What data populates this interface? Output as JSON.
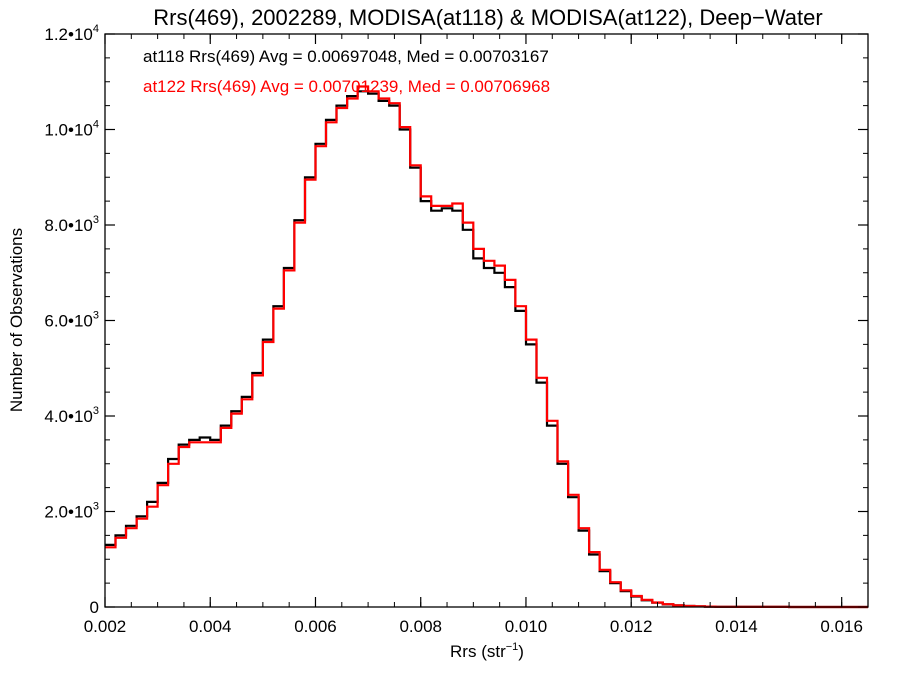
{
  "chart_data": {
    "type": "line",
    "title": "Rrs(469), 2002289, MODISA(at118) & MODISA(at122), Deep−Water",
    "xlabel": "Rrs (str",
    "xlabel_sup": "−1",
    "xlabel_end": ")",
    "ylabel": "Number of Observations",
    "xlim": [
      0.002,
      0.0165
    ],
    "ylim": [
      0,
      12000
    ],
    "grid": false,
    "x_ticks": [
      0.002,
      0.004,
      0.006,
      0.008,
      0.01,
      0.012,
      0.014,
      0.016
    ],
    "x_tick_labels": [
      "0.002",
      "0.004",
      "0.006",
      "0.008",
      "0.010",
      "0.012",
      "0.014",
      "0.016"
    ],
    "y_ticks": [
      {
        "value": 0,
        "base": "0",
        "sup": ""
      },
      {
        "value": 2000,
        "base": "2.0•10",
        "sup": "3"
      },
      {
        "value": 4000,
        "base": "4.0•10",
        "sup": "3"
      },
      {
        "value": 6000,
        "base": "6.0•10",
        "sup": "3"
      },
      {
        "value": 8000,
        "base": "8.0•10",
        "sup": "3"
      },
      {
        "value": 10000,
        "base": "1.0•10",
        "sup": "4"
      },
      {
        "value": 12000,
        "base": "1.2•10",
        "sup": "4"
      }
    ],
    "annotations": [
      {
        "text": "at118 Rrs(469) Avg = 0.00697048, Med = 0.00703167",
        "color": "#000000"
      },
      {
        "text": "at122 Rrs(469) Avg = 0.00701239, Med = 0.00706968",
        "color": "#ff0000"
      }
    ],
    "series": [
      {
        "color": "#000000",
        "points": [
          [
            0.002,
            1300
          ],
          [
            0.0022,
            1500
          ],
          [
            0.0024,
            1700
          ],
          [
            0.0026,
            1900
          ],
          [
            0.0028,
            2200
          ],
          [
            0.003,
            2600
          ],
          [
            0.0032,
            3100
          ],
          [
            0.0034,
            3400
          ],
          [
            0.0036,
            3500
          ],
          [
            0.0038,
            3550
          ],
          [
            0.004,
            3500
          ],
          [
            0.0042,
            3800
          ],
          [
            0.0044,
            4100
          ],
          [
            0.0046,
            4400
          ],
          [
            0.0048,
            4900
          ],
          [
            0.005,
            5600
          ],
          [
            0.0052,
            6300
          ],
          [
            0.0054,
            7100
          ],
          [
            0.0056,
            8100
          ],
          [
            0.0058,
            9000
          ],
          [
            0.006,
            9700
          ],
          [
            0.0062,
            10200
          ],
          [
            0.0064,
            10500
          ],
          [
            0.0066,
            10700
          ],
          [
            0.0068,
            10800
          ],
          [
            0.007,
            10750
          ],
          [
            0.0072,
            10600
          ],
          [
            0.0074,
            10500
          ],
          [
            0.0076,
            10000
          ],
          [
            0.0078,
            9200
          ],
          [
            0.008,
            8500
          ],
          [
            0.0082,
            8300
          ],
          [
            0.0084,
            8350
          ],
          [
            0.0086,
            8300
          ],
          [
            0.0088,
            7900
          ],
          [
            0.009,
            7300
          ],
          [
            0.0092,
            7100
          ],
          [
            0.0094,
            7000
          ],
          [
            0.0096,
            6700
          ],
          [
            0.0098,
            6200
          ],
          [
            0.01,
            5500
          ],
          [
            0.0102,
            4700
          ],
          [
            0.0104,
            3800
          ],
          [
            0.0106,
            3000
          ],
          [
            0.0108,
            2300
          ],
          [
            0.011,
            1600
          ],
          [
            0.0112,
            1100
          ],
          [
            0.0114,
            750
          ],
          [
            0.0116,
            500
          ],
          [
            0.0118,
            330
          ],
          [
            0.012,
            220
          ],
          [
            0.0122,
            140
          ],
          [
            0.0124,
            90
          ],
          [
            0.0126,
            55
          ],
          [
            0.0128,
            35
          ],
          [
            0.013,
            20
          ],
          [
            0.0132,
            12
          ],
          [
            0.0134,
            8
          ],
          [
            0.0136,
            5
          ],
          [
            0.014,
            3
          ],
          [
            0.0145,
            2
          ],
          [
            0.015,
            1
          ],
          [
            0.0155,
            1
          ],
          [
            0.016,
            0
          ],
          [
            0.0165,
            0
          ]
        ]
      },
      {
        "color": "#ff0000",
        "points": [
          [
            0.002,
            1250
          ],
          [
            0.0022,
            1450
          ],
          [
            0.0024,
            1650
          ],
          [
            0.0026,
            1850
          ],
          [
            0.0028,
            2100
          ],
          [
            0.003,
            2550
          ],
          [
            0.0032,
            3000
          ],
          [
            0.0034,
            3350
          ],
          [
            0.0036,
            3450
          ],
          [
            0.0038,
            3450
          ],
          [
            0.004,
            3450
          ],
          [
            0.0042,
            3750
          ],
          [
            0.0044,
            4050
          ],
          [
            0.0046,
            4350
          ],
          [
            0.0048,
            4850
          ],
          [
            0.005,
            5550
          ],
          [
            0.0052,
            6250
          ],
          [
            0.0054,
            7050
          ],
          [
            0.0056,
            8050
          ],
          [
            0.0058,
            8950
          ],
          [
            0.006,
            9650
          ],
          [
            0.0062,
            10150
          ],
          [
            0.0064,
            10450
          ],
          [
            0.0066,
            10650
          ],
          [
            0.0068,
            10900
          ],
          [
            0.007,
            10800
          ],
          [
            0.0072,
            10650
          ],
          [
            0.0074,
            10550
          ],
          [
            0.0076,
            10050
          ],
          [
            0.0078,
            9250
          ],
          [
            0.008,
            8600
          ],
          [
            0.0082,
            8400
          ],
          [
            0.0084,
            8400
          ],
          [
            0.0086,
            8450
          ],
          [
            0.0088,
            8050
          ],
          [
            0.009,
            7500
          ],
          [
            0.0092,
            7250
          ],
          [
            0.0094,
            7150
          ],
          [
            0.0096,
            6850
          ],
          [
            0.0098,
            6300
          ],
          [
            0.01,
            5600
          ],
          [
            0.0102,
            4800
          ],
          [
            0.0104,
            3900
          ],
          [
            0.0106,
            3050
          ],
          [
            0.0108,
            2350
          ],
          [
            0.011,
            1650
          ],
          [
            0.0112,
            1150
          ],
          [
            0.0114,
            780
          ],
          [
            0.0116,
            520
          ],
          [
            0.0118,
            350
          ],
          [
            0.012,
            230
          ],
          [
            0.0122,
            150
          ],
          [
            0.0124,
            95
          ],
          [
            0.0126,
            58
          ],
          [
            0.0128,
            36
          ],
          [
            0.013,
            21
          ],
          [
            0.0132,
            13
          ],
          [
            0.0134,
            8
          ],
          [
            0.0136,
            5
          ],
          [
            0.014,
            3
          ],
          [
            0.0145,
            2
          ],
          [
            0.015,
            1
          ],
          [
            0.0155,
            1
          ],
          [
            0.016,
            0
          ],
          [
            0.0165,
            0
          ]
        ]
      }
    ]
  }
}
